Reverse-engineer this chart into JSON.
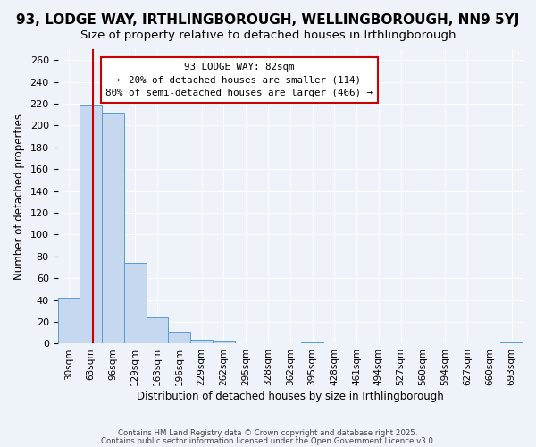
{
  "title": "93, LODGE WAY, IRTHLINGBOROUGH, WELLINGBOROUGH, NN9 5YJ",
  "subtitle": "Size of property relative to detached houses in Irthlingborough",
  "xlabel": "Distribution of detached houses by size in Irthlingborough",
  "ylabel": "Number of detached properties",
  "bar_values": [
    42,
    218,
    212,
    74,
    24,
    11,
    4,
    3,
    0,
    0,
    0,
    1,
    0,
    0,
    0,
    0,
    0,
    0,
    0,
    0,
    1
  ],
  "bin_labels": [
    "30sqm",
    "63sqm",
    "96sqm",
    "129sqm",
    "163sqm",
    "196sqm",
    "229sqm",
    "262sqm",
    "295sqm",
    "328sqm",
    "362sqm",
    "395sqm",
    "428sqm",
    "461sqm",
    "494sqm",
    "527sqm",
    "560sqm",
    "594sqm",
    "627sqm",
    "660sqm",
    "693sqm"
  ],
  "bar_color": "#c5d8f0",
  "bar_edge_color": "#5b9bd5",
  "vline_color": "#cc0000",
  "ylim": [
    0,
    270
  ],
  "yticks": [
    0,
    20,
    40,
    60,
    80,
    100,
    120,
    140,
    160,
    180,
    200,
    220,
    240,
    260
  ],
  "annotation_title": "93 LODGE WAY: 82sqm",
  "annotation_line1": "← 20% of detached houses are smaller (114)",
  "annotation_line2": "80% of semi-detached houses are larger (466) →",
  "footnote1": "Contains HM Land Registry data © Crown copyright and database right 2025.",
  "footnote2": "Contains public sector information licensed under the Open Government Licence v3.0.",
  "background_color": "#eef2f9",
  "grid_color": "#ffffff",
  "title_fontsize": 11,
  "subtitle_fontsize": 9.5
}
